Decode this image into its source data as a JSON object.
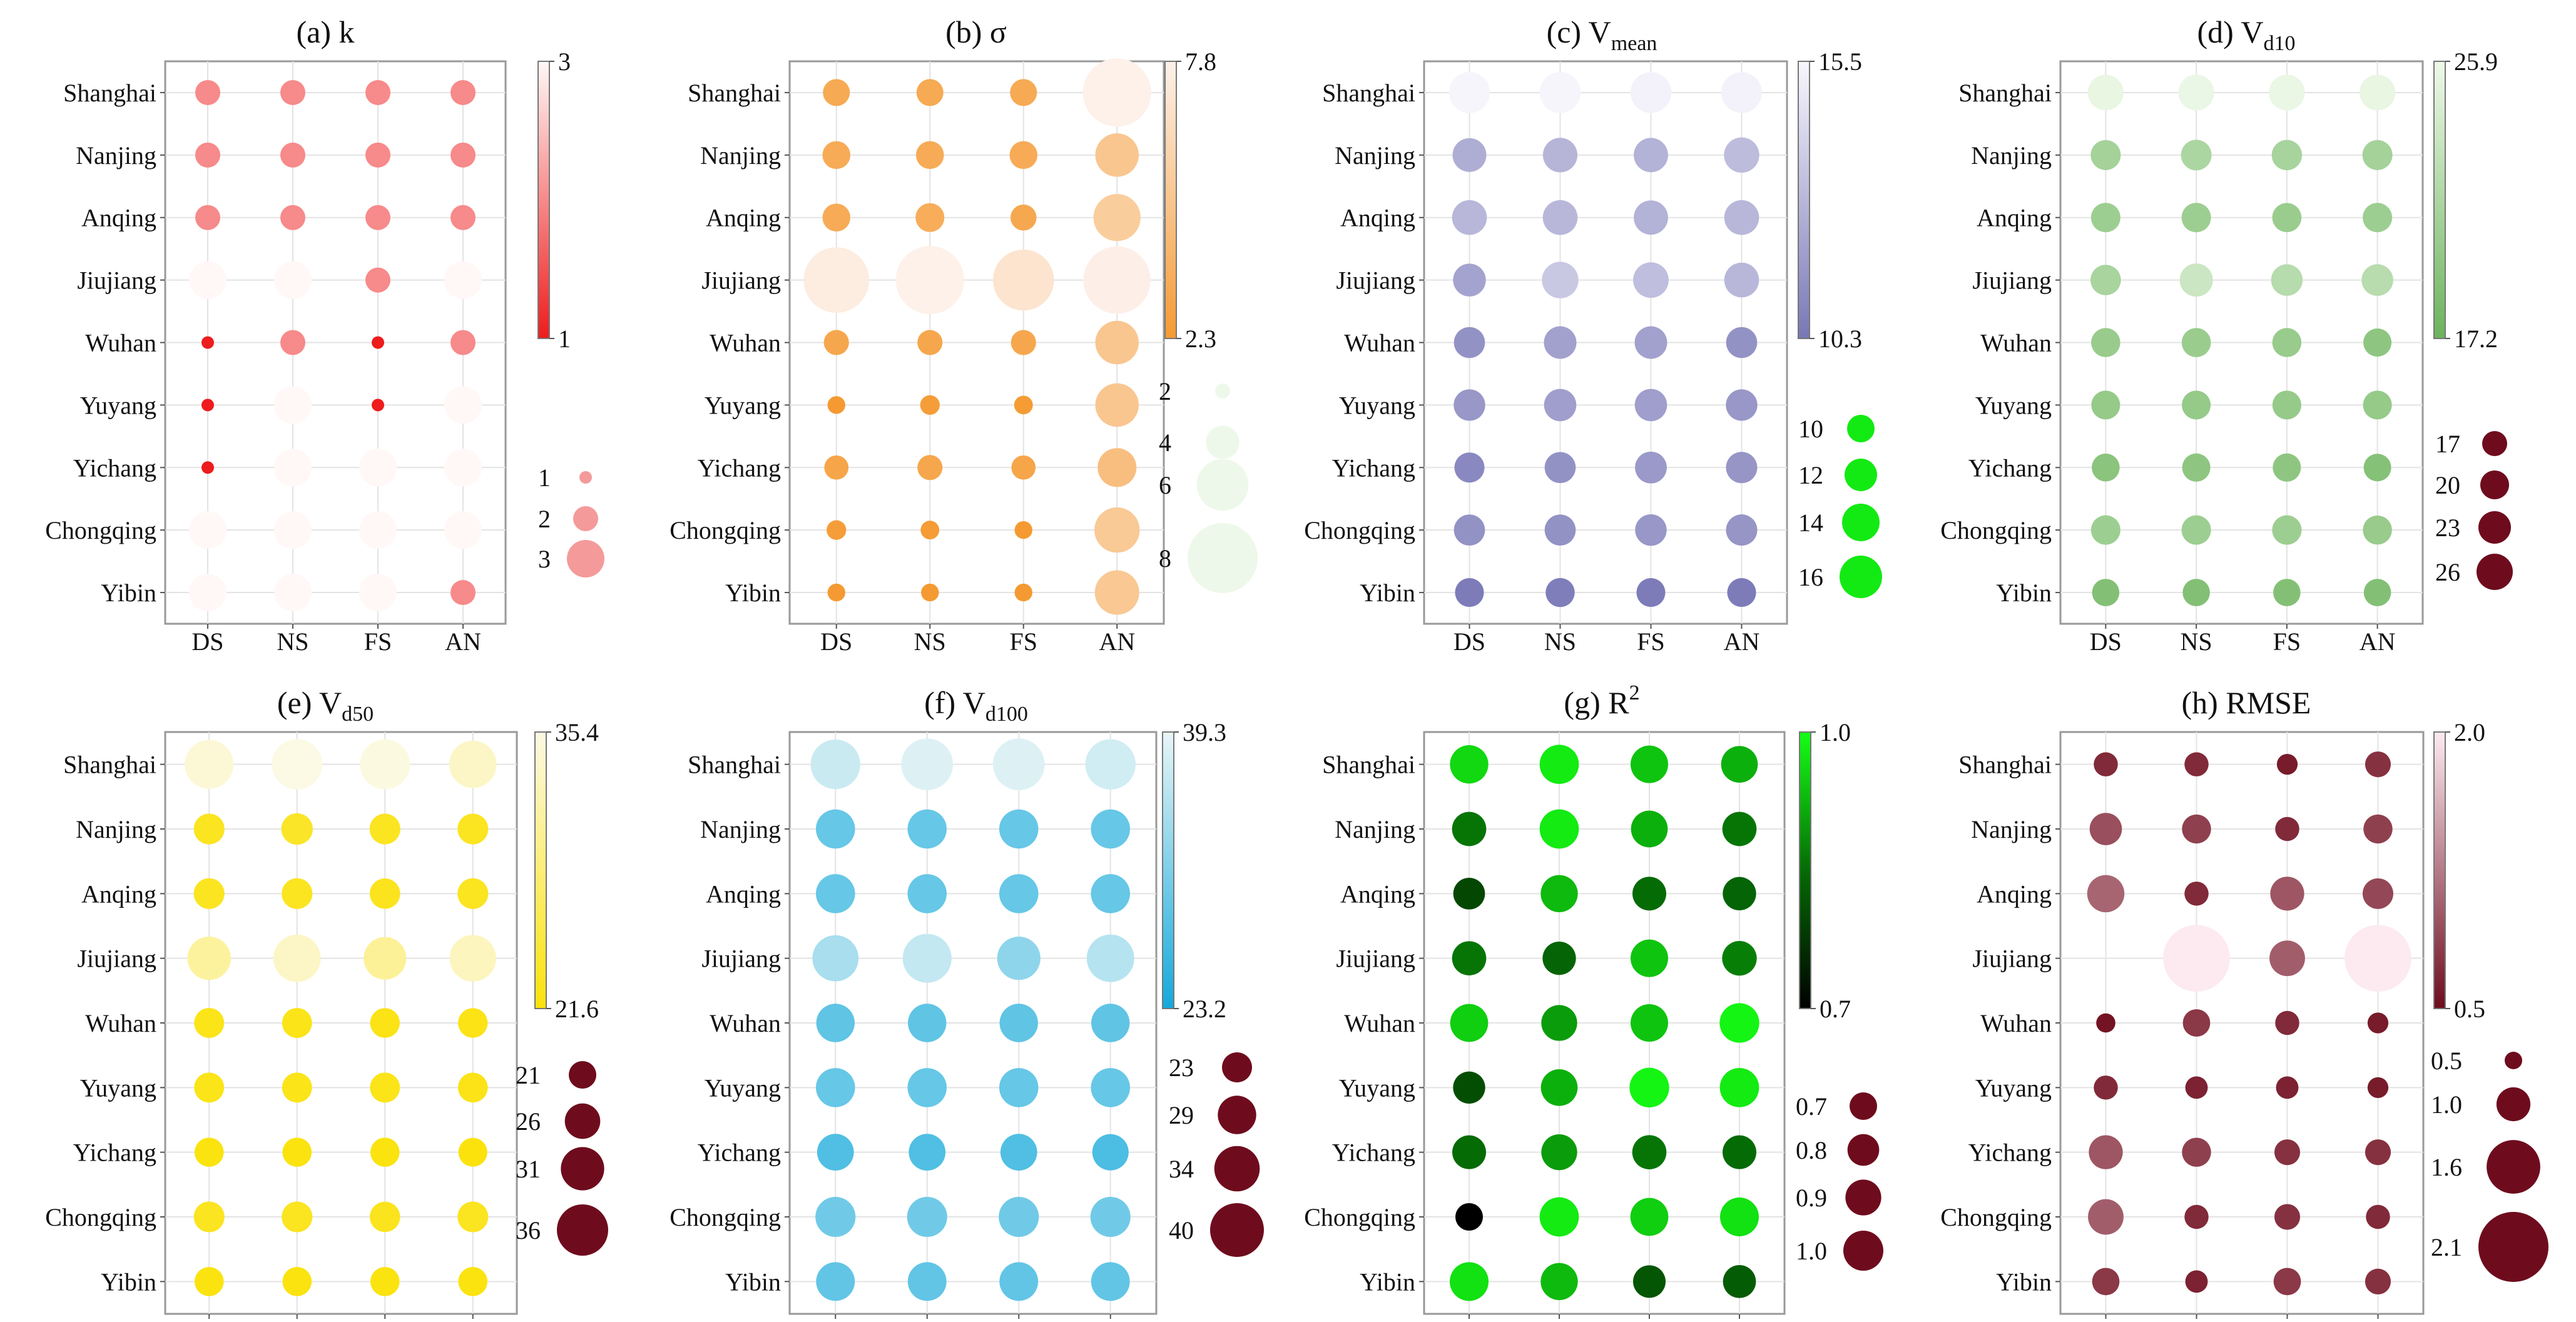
{
  "figure": {
    "rows": [
      "Shanghai",
      "Nanjing",
      "Anqing",
      "Jiujiang",
      "Wuhan",
      "Yuyang",
      "Yichang",
      "Chongqing",
      "Yibin"
    ],
    "cols": [
      "DS",
      "NS",
      "FS",
      "AN"
    ]
  },
  "chart_data": [
    {
      "type": "scatter",
      "panel": "a",
      "title_main": "(a) k",
      "title_sub": "",
      "cmap": {
        "low": "#ee1c1c",
        "high": "#fff8f7",
        "min": 1,
        "max": 3,
        "ticks": [
          "3",
          "1"
        ]
      },
      "size_legend": [
        {
          "value": 1,
          "label": "1"
        },
        {
          "value": 2,
          "label": "2"
        },
        {
          "value": 3,
          "label": "3"
        }
      ],
      "size_domain": [
        1,
        3
      ],
      "values": [
        [
          2,
          2,
          2,
          2
        ],
        [
          2,
          2,
          2,
          2
        ],
        [
          2,
          2,
          2,
          2
        ],
        [
          3,
          3,
          2,
          3
        ],
        [
          1,
          2,
          1,
          2
        ],
        [
          1,
          3,
          1,
          3
        ],
        [
          1,
          3,
          3,
          3
        ],
        [
          3,
          3,
          3,
          3
        ],
        [
          3,
          3,
          3,
          2
        ]
      ]
    },
    {
      "type": "scatter",
      "panel": "b",
      "title_main": "(b) σ",
      "title_sub": "",
      "cmap": {
        "low": "#f59a32",
        "high": "#fdf1ea",
        "min": 2.3,
        "max": 7.8,
        "ticks": [
          "7.8",
          "2.3"
        ]
      },
      "size_legend": [
        {
          "value": 2,
          "label": "2"
        },
        {
          "value": 4,
          "label": "4"
        },
        {
          "value": 6,
          "label": "6"
        },
        {
          "value": 8,
          "label": "8"
        }
      ],
      "size_domain": [
        2,
        8
      ],
      "values": [
        [
          3.3,
          3.3,
          3.3,
          7.8
        ],
        [
          3.4,
          3.4,
          3.4,
          5.1
        ],
        [
          3.4,
          3.5,
          3.2,
          5.5
        ],
        [
          7.5,
          7.8,
          7.0,
          7.7
        ],
        [
          3.1,
          3.1,
          3.1,
          5.1
        ],
        [
          2.3,
          2.5,
          2.4,
          5.1
        ],
        [
          3.0,
          3.1,
          3.0,
          4.6
        ],
        [
          2.5,
          2.4,
          2.3,
          5.3
        ],
        [
          2.3,
          2.3,
          2.3,
          5.2
        ]
      ]
    },
    {
      "type": "scatter",
      "panel": "c",
      "title_main": "(c) V",
      "title_sub": "mean",
      "cmap": {
        "low": "#7877b6",
        "high": "#f8f7fd",
        "min": 10.3,
        "max": 15.5,
        "ticks": [
          "15.5",
          "10.3"
        ]
      },
      "size_legend": [
        {
          "value": 10,
          "label": "10"
        },
        {
          "value": 12,
          "label": "12"
        },
        {
          "value": 14,
          "label": "14"
        },
        {
          "value": 16,
          "label": "16"
        }
      ],
      "size_domain": [
        10,
        16
      ],
      "values": [
        [
          15.4,
          15.4,
          15.3,
          15.3
        ],
        [
          12.5,
          12.8,
          12.7,
          13.1
        ],
        [
          12.9,
          12.9,
          12.7,
          12.9
        ],
        [
          12.1,
          13.6,
          13.2,
          12.9
        ],
        [
          11.4,
          12.0,
          12.0,
          11.4
        ],
        [
          11.6,
          11.9,
          11.9,
          11.6
        ],
        [
          11.0,
          11.4,
          11.7,
          11.5
        ],
        [
          11.4,
          11.4,
          11.6,
          11.5
        ],
        [
          10.5,
          10.6,
          10.5,
          10.5
        ]
      ]
    },
    {
      "type": "scatter",
      "panel": "d",
      "title_main": "(d) V",
      "title_sub": "d10",
      "cmap": {
        "low": "#6bb35b",
        "high": "#eef9e9",
        "min": 17.2,
        "max": 25.9,
        "ticks": [
          "25.9",
          "17.2"
        ]
      },
      "size_legend": [
        {
          "value": 17,
          "label": "17"
        },
        {
          "value": 20,
          "label": "20"
        },
        {
          "value": 23,
          "label": "23"
        },
        {
          "value": 26,
          "label": "26"
        }
      ],
      "size_domain": [
        17,
        26
      ],
      "values": [
        [
          25.5,
          25.7,
          25.6,
          25.5
        ],
        [
          21.0,
          21.5,
          21.2,
          21.0
        ],
        [
          20.5,
          20.5,
          20.3,
          20.5
        ],
        [
          21.3,
          23.5,
          22.2,
          22.3
        ],
        [
          20.2,
          20.3,
          20.2,
          19.5
        ],
        [
          20.0,
          20.0,
          20.0,
          20.0
        ],
        [
          19.3,
          19.5,
          19.5,
          19.0
        ],
        [
          20.5,
          20.5,
          20.5,
          20.2
        ],
        [
          18.8,
          18.8,
          18.8,
          18.8
        ]
      ]
    },
    {
      "type": "scatter",
      "panel": "e",
      "title_main": "(e) V",
      "title_sub": "d50",
      "cmap": {
        "low": "#fbe20a",
        "high": "#fcf9e4",
        "min": 21.6,
        "max": 35.4,
        "ticks": [
          "35.4",
          "21.6"
        ]
      },
      "size_legend": [
        {
          "value": 21,
          "label": "21"
        },
        {
          "value": 26,
          "label": "26"
        },
        {
          "value": 31,
          "label": "31"
        },
        {
          "value": 36,
          "label": "36"
        }
      ],
      "size_domain": [
        21,
        36
      ],
      "values": [
        [
          34.5,
          35.4,
          35.2,
          33.5
        ],
        [
          23.0,
          23.5,
          23.0,
          23.0
        ],
        [
          23.0,
          23.0,
          22.8,
          23.0
        ],
        [
          31.0,
          33.5,
          30.5,
          33.0
        ],
        [
          22.5,
          22.5,
          22.3,
          22.3
        ],
        [
          22.5,
          22.5,
          22.5,
          22.4
        ],
        [
          22.0,
          22.0,
          22.0,
          21.8
        ],
        [
          23.0,
          23.0,
          22.8,
          23.0
        ],
        [
          22.0,
          22.0,
          22.0,
          22.0
        ]
      ]
    },
    {
      "type": "scatter",
      "panel": "f",
      "title_main": "(f) V",
      "title_sub": "d100",
      "cmap": {
        "low": "#13a9dc",
        "high": "#e8f5f6",
        "min": 23.2,
        "max": 39.3,
        "ticks": [
          "39.3",
          "23.2"
        ]
      },
      "size_legend": [
        {
          "value": 23,
          "label": "23"
        },
        {
          "value": 29,
          "label": "29"
        },
        {
          "value": 34,
          "label": "34"
        },
        {
          "value": 40,
          "label": "40"
        }
      ],
      "size_domain": [
        23,
        40
      ],
      "values": [
        [
          37.0,
          38.5,
          38.5,
          37.5
        ],
        [
          29.5,
          29.5,
          29.5,
          29.5
        ],
        [
          29.5,
          29.5,
          29.5,
          29.5
        ],
        [
          34.5,
          36.5,
          32.5,
          35.5
        ],
        [
          29.0,
          29.0,
          29.0,
          29.0
        ],
        [
          29.5,
          29.5,
          29.5,
          29.5
        ],
        [
          27.8,
          27.8,
          27.8,
          27.5
        ],
        [
          30.2,
          30.2,
          30.2,
          30.2
        ],
        [
          29.2,
          29.2,
          29.2,
          29.2
        ]
      ]
    },
    {
      "type": "scatter",
      "panel": "g",
      "title_main": "(g) R",
      "title_sup": "2",
      "cmap": {
        "stops": [
          "#000000",
          "#056b05",
          "#15ff15"
        ],
        "min": 0.7,
        "max": 1.0,
        "ticks": [
          "1.0",
          "0.7"
        ]
      },
      "size_legend": [
        {
          "value": 0.7,
          "label": "0.7"
        },
        {
          "value": 0.8,
          "label": "0.8"
        },
        {
          "value": 0.9,
          "label": "0.9"
        },
        {
          "value": 1.0,
          "label": "1.0"
        }
      ],
      "size_domain": [
        0.7,
        1.0
      ],
      "values": [
        [
          0.96,
          0.98,
          0.94,
          0.92
        ],
        [
          0.86,
          0.98,
          0.92,
          0.86
        ],
        [
          0.8,
          0.93,
          0.85,
          0.84
        ],
        [
          0.86,
          0.84,
          0.94,
          0.87
        ],
        [
          0.95,
          0.9,
          0.94,
          0.99
        ],
        [
          0.81,
          0.92,
          0.99,
          0.98
        ],
        [
          0.85,
          0.9,
          0.86,
          0.85
        ],
        [
          0.7,
          0.98,
          0.95,
          0.97
        ],
        [
          0.97,
          0.93,
          0.82,
          0.83
        ]
      ]
    },
    {
      "type": "scatter",
      "panel": "h",
      "title_main": "(h) RMSE",
      "title_sub": "",
      "cmap": {
        "low": "#6e0c1d",
        "high": "#fdeaf1",
        "min": 0.5,
        "max": 2.0,
        "ticks": [
          "2.0",
          "0.5"
        ]
      },
      "size_legend": [
        {
          "value": 0.5,
          "label": "0.5"
        },
        {
          "value": 1.0,
          "label": "1.0"
        },
        {
          "value": 1.6,
          "label": "1.6"
        },
        {
          "value": 2.1,
          "label": "2.1"
        }
      ],
      "size_domain": [
        0.5,
        2.1
      ],
      "values": [
        [
          0.7,
          0.7,
          0.6,
          0.75
        ],
        [
          0.95,
          0.85,
          0.7,
          0.85
        ],
        [
          1.1,
          0.7,
          1.0,
          0.9
        ],
        [
          null,
          2.0,
          1.05,
          2.0
        ],
        [
          0.55,
          0.8,
          0.7,
          0.6
        ],
        [
          0.7,
          0.65,
          0.65,
          0.6
        ],
        [
          1.0,
          0.85,
          0.75,
          0.75
        ],
        [
          1.05,
          0.7,
          0.75,
          0.7
        ],
        [
          0.8,
          0.65,
          0.8,
          0.75
        ]
      ]
    }
  ]
}
